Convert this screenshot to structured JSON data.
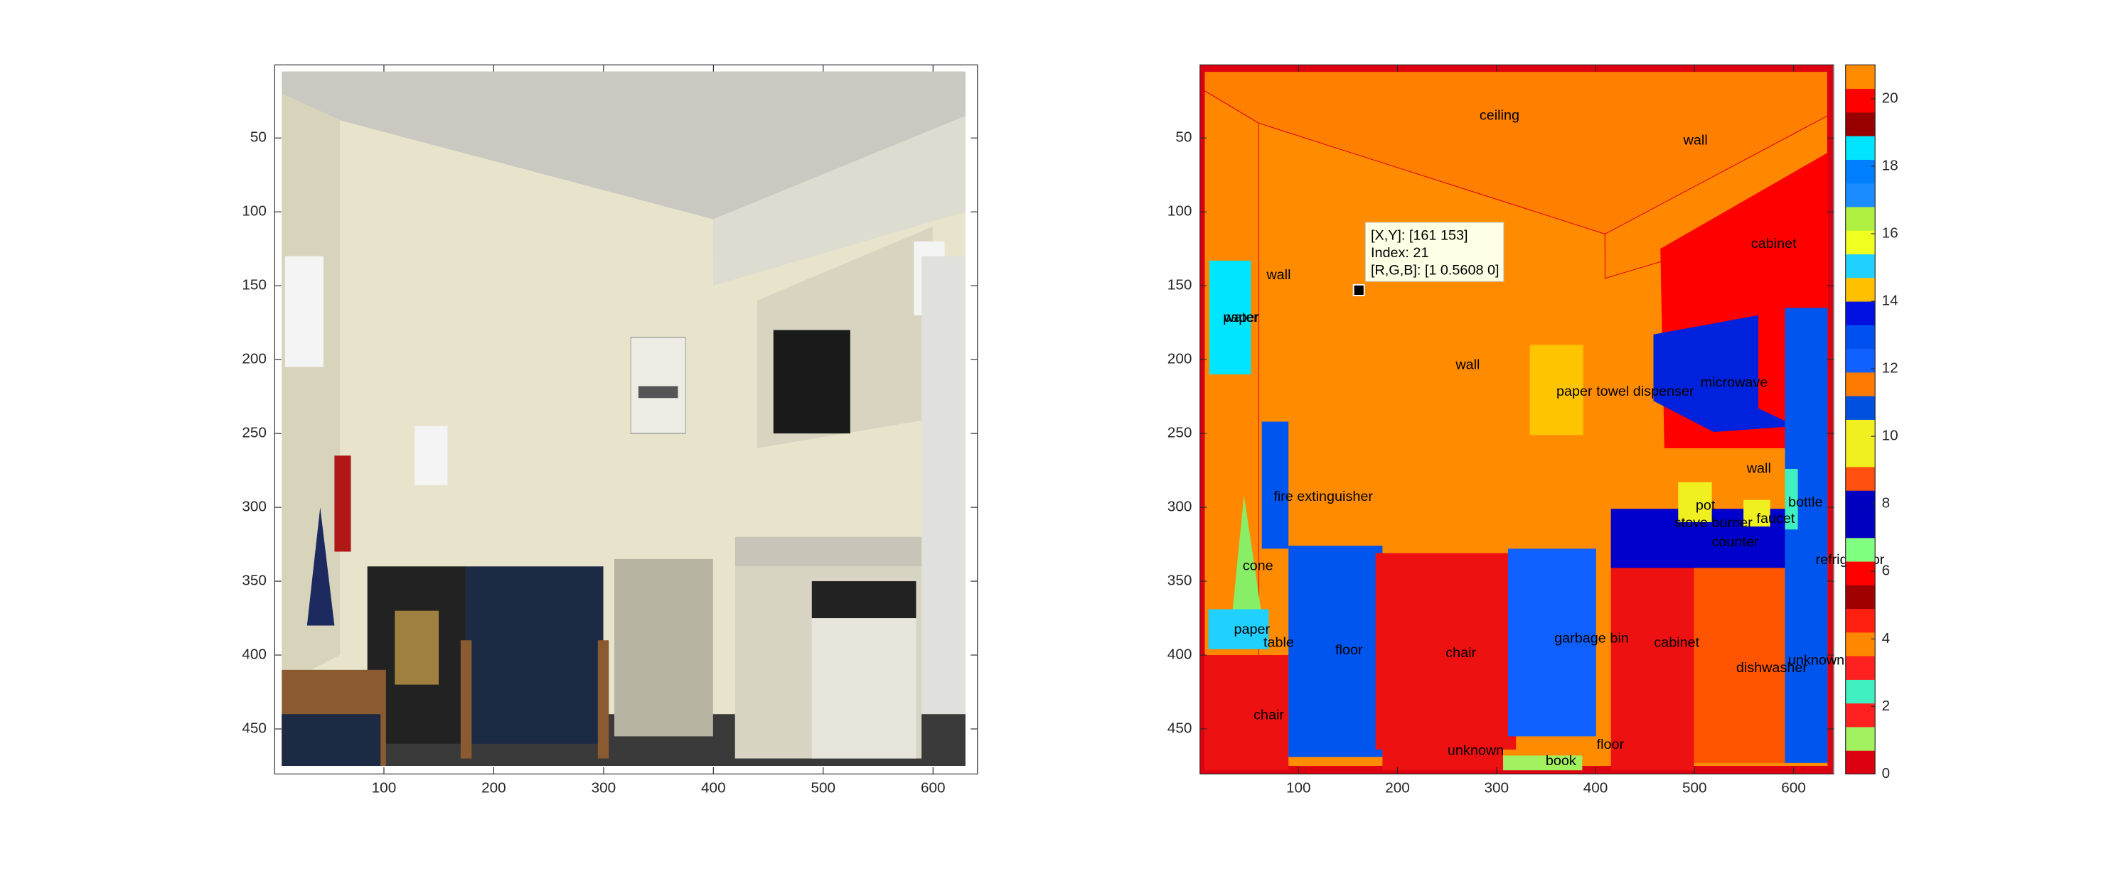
{
  "figure": {
    "left_axes": {
      "xlim": [
        0.5,
        640.5
      ],
      "ylim": [
        0.5,
        480.5
      ],
      "xticks": [
        100,
        200,
        300,
        400,
        500,
        600
      ],
      "yticks": [
        50,
        100,
        150,
        200,
        250,
        300,
        350,
        400,
        450
      ]
    },
    "right_axes": {
      "xlim": [
        0.5,
        640.5
      ],
      "ylim": [
        0.5,
        480.5
      ],
      "xticks": [
        100,
        200,
        300,
        400,
        500,
        600
      ],
      "yticks": [
        50,
        100,
        150,
        200,
        250,
        300,
        350,
        400,
        450
      ],
      "labels": [
        "ceiling",
        "wall",
        "cabinet",
        "wall",
        "paper",
        "water",
        "wall",
        "paper towel dispenser",
        "microwave",
        "wall",
        "fire extinguisher",
        "pot",
        "bottle",
        "stove burner",
        "faucet",
        "counter",
        "refrigerator",
        "cone",
        "paper",
        "table",
        "floor",
        "chair",
        "garbage bin",
        "cabinet",
        "dishwasher",
        "unknown",
        "chair",
        "floor",
        "unknown",
        "book"
      ],
      "datatip": {
        "lines": [
          "[X,Y]: [161 153]",
          "Index: 21",
          "[R,G,B]: [1 0.5608 0]"
        ]
      }
    },
    "colorbar": {
      "lim": [
        0,
        21
      ],
      "ticks": [
        0,
        2,
        4,
        6,
        8,
        10,
        12,
        14,
        16,
        18,
        20
      ],
      "colors": [
        "#dd0010",
        "#a0f060",
        "#ff2020",
        "#40f0c0",
        "#ff2020",
        "#ff8800",
        "#ff2010",
        "#a00000",
        "#ff0000",
        "#80ff80",
        "#0000c0",
        "#0000c0",
        "#ff5010",
        "#f0f020",
        "#f0f020",
        "#0050e0",
        "#ff7a00",
        "#1060ff",
        "#0050f0",
        "#0010e0",
        "#ffc000",
        "#20d0ff",
        "#f0ff20",
        "#b0f040",
        "#1a8cff",
        "#0080ff",
        "#00e5ff",
        "#990000",
        "#ff0000",
        "#ff8c00"
      ]
    }
  }
}
